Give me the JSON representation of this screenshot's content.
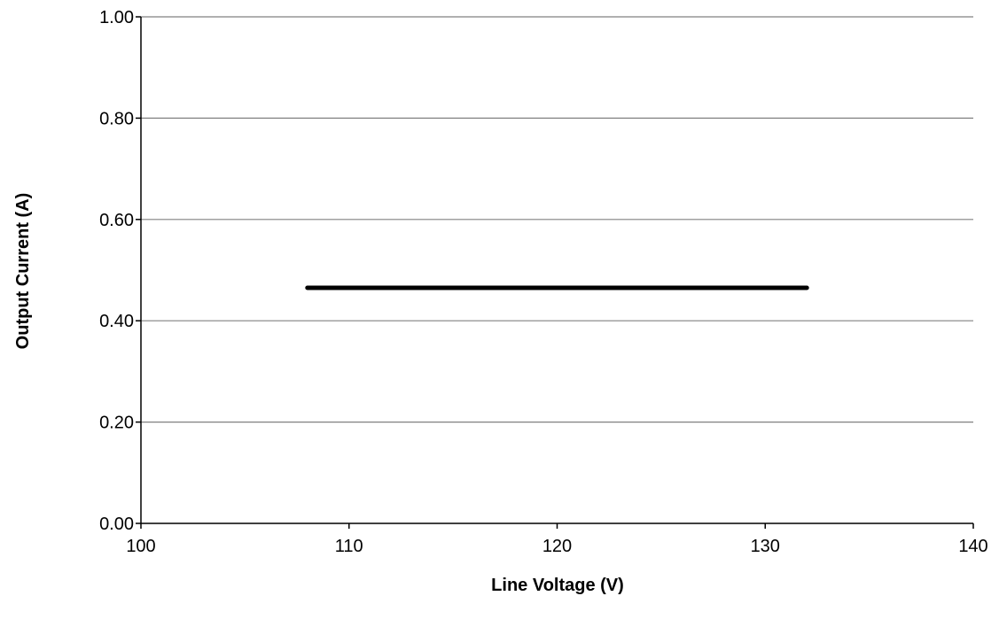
{
  "chart_data": {
    "type": "line",
    "title": "",
    "xlabel": "Line Voltage (V)",
    "ylabel": "Output Current (A)",
    "xlim": [
      100,
      140
    ],
    "ylim": [
      0,
      1
    ],
    "x_ticks": [
      "100",
      "110",
      "120",
      "130",
      "140"
    ],
    "y_ticks": [
      "0.00",
      "0.20",
      "0.40",
      "0.60",
      "0.80",
      "1.00"
    ],
    "grid": "horizontal",
    "legend": "none",
    "series": [
      {
        "x": [
          108,
          132
        ],
        "y": [
          0.465,
          0.465
        ],
        "color": "#000000"
      }
    ]
  }
}
